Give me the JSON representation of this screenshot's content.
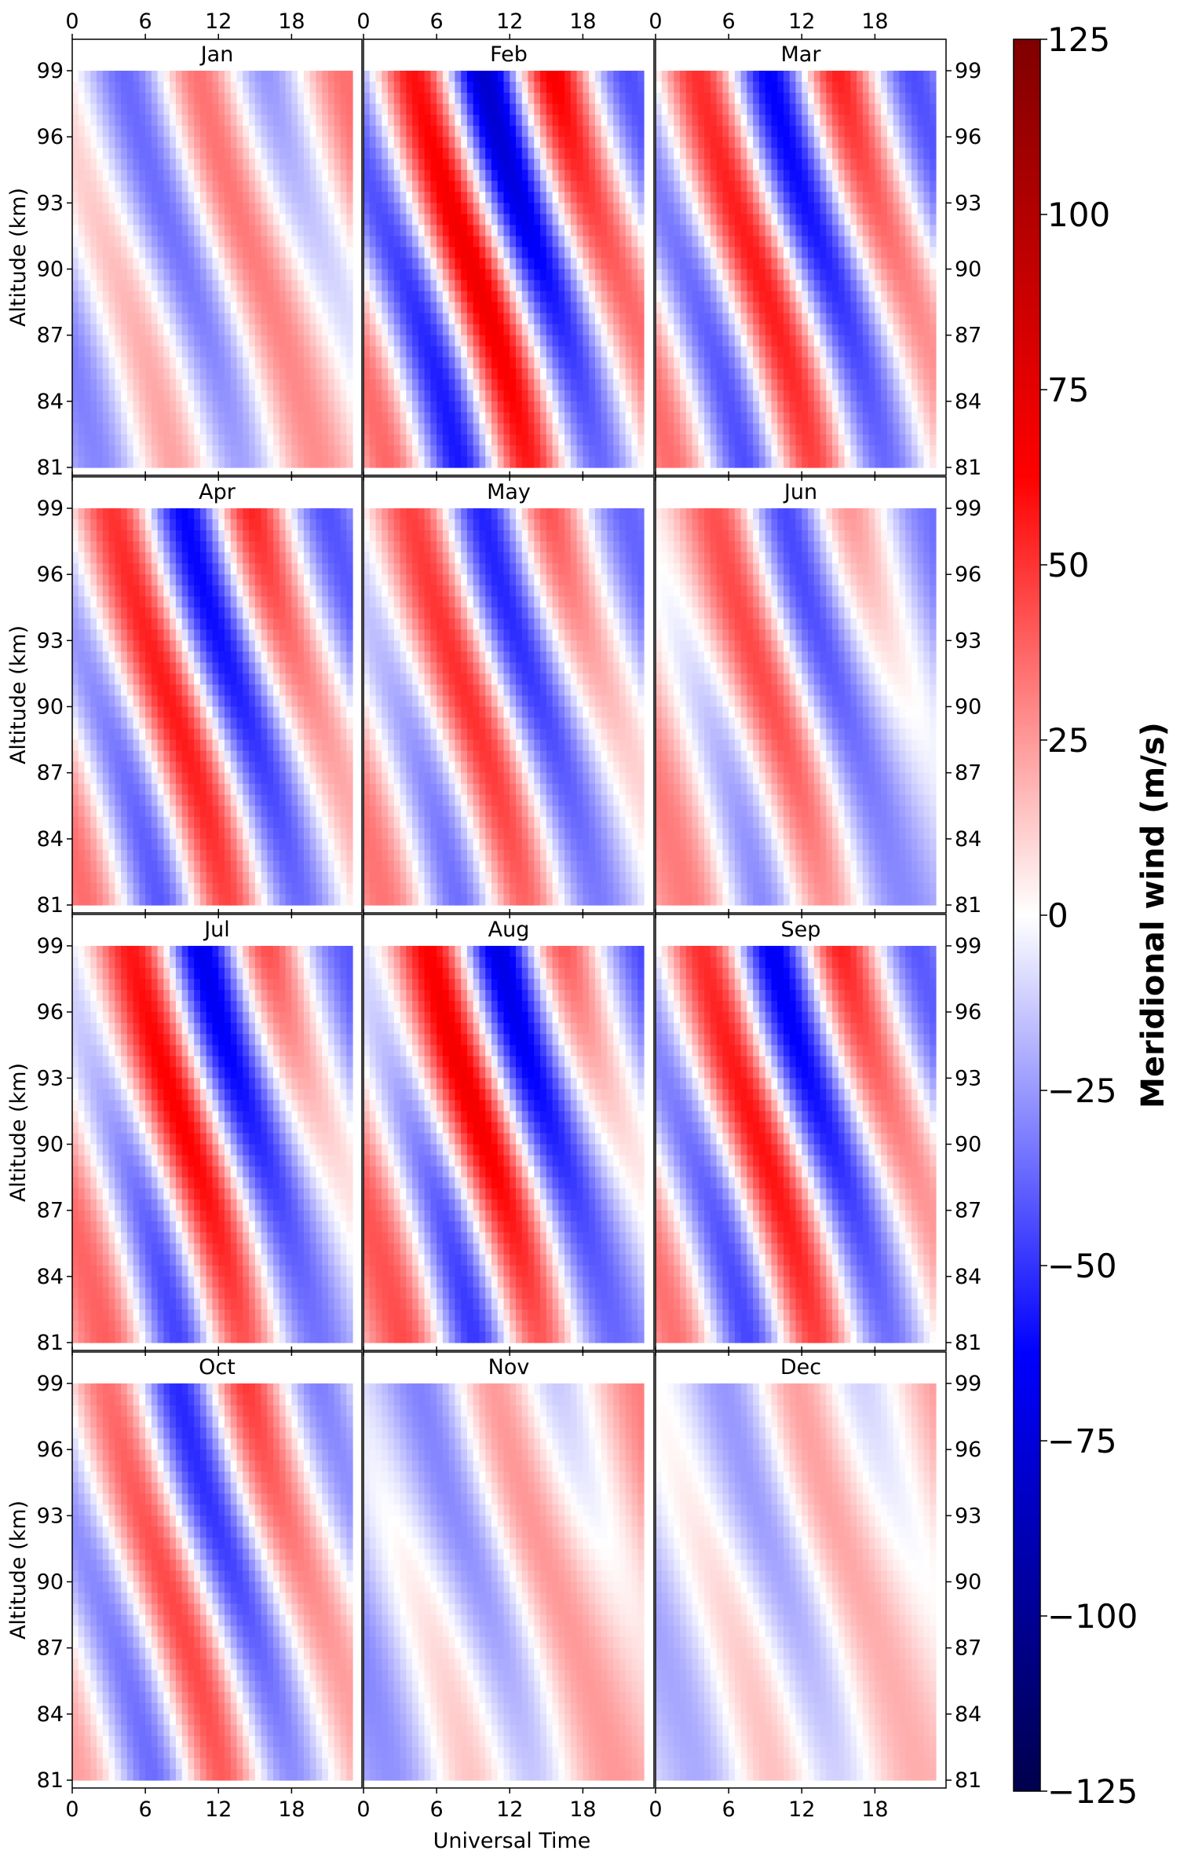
{
  "chart_data": {
    "type": "heatmap",
    "panels": [
      {
        "title": "Jan",
        "phase": 3.2,
        "amp": 30,
        "vary": 0.2,
        "trend": 12,
        "base_tilt": 0
      },
      {
        "title": "Feb",
        "phase": 8.8,
        "amp": 62,
        "vary": 0.3,
        "trend": 0,
        "base_tilt": 0
      },
      {
        "title": "Mar",
        "phase": 8.2,
        "amp": 52,
        "vary": 0.25,
        "trend": -5,
        "base_tilt": 0
      },
      {
        "title": "Apr",
        "phase": 8.0,
        "amp": 50,
        "vary": 0.3,
        "trend": -8,
        "base_tilt": 0
      },
      {
        "title": "May",
        "phase": 8.6,
        "amp": 42,
        "vary": 0.35,
        "trend": -12,
        "base_tilt": 0
      },
      {
        "title": "Jun",
        "phase": 9.5,
        "amp": 32,
        "vary": 0.45,
        "trend": -18,
        "base_tilt": 0
      },
      {
        "title": "Jul",
        "phase": 9.5,
        "amp": 48,
        "vary": 0.45,
        "trend": -15,
        "base_tilt": 0
      },
      {
        "title": "Aug",
        "phase": 10.0,
        "amp": 50,
        "vary": 0.45,
        "trend": -18,
        "base_tilt": 0
      },
      {
        "title": "Sep",
        "phase": 8.5,
        "amp": 52,
        "vary": 0.3,
        "trend": -5,
        "base_tilt": 0
      },
      {
        "title": "Oct",
        "phase": 7.5,
        "amp": 42,
        "vary": 0.3,
        "trend": 0,
        "base_tilt": 0
      },
      {
        "title": "Nov",
        "phase": 3.5,
        "amp": 20,
        "vary": 0.3,
        "trend": 18,
        "base_tilt": 0
      },
      {
        "title": "Dec",
        "phase": 4.5,
        "amp": 18,
        "vary": 0.3,
        "trend": 12,
        "base_tilt": 0
      }
    ],
    "x": {
      "label": "Universal Time",
      "range": [
        0,
        23
      ],
      "ticks": [
        0,
        6,
        12,
        18
      ]
    },
    "y": {
      "label": "Altitude (km)",
      "range": [
        81,
        99
      ],
      "ticks": [
        81,
        84,
        87,
        90,
        93,
        96,
        99
      ]
    },
    "colorbar": {
      "label": "Meridional wind (m/s)",
      "range": [
        -125,
        125
      ],
      "ticks": [
        -125,
        -100,
        -75,
        -50,
        -25,
        0,
        25,
        50,
        75,
        100,
        125
      ],
      "tick_labels": [
        "−125",
        "−100",
        "−75",
        "−50",
        "−25",
        "0",
        "25",
        "50",
        "75",
        "100",
        "125"
      ],
      "colormap": "seismic"
    },
    "grid": false
  }
}
